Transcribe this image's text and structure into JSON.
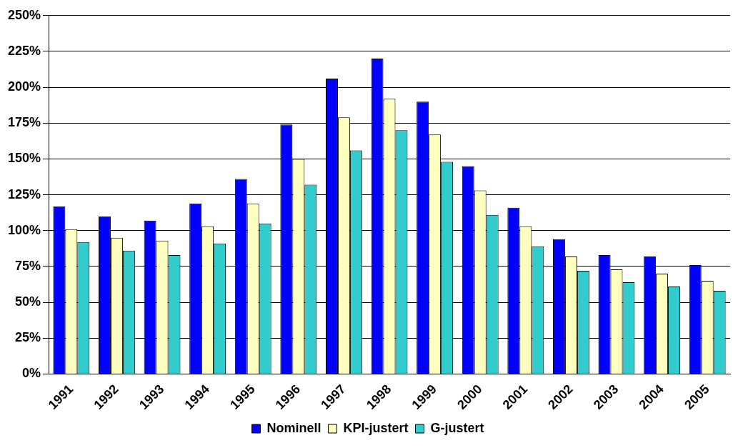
{
  "chart_data": {
    "type": "bar",
    "categories": [
      "1991",
      "1992",
      "1993",
      "1994",
      "1995",
      "1996",
      "1997",
      "1998",
      "1999",
      "2000",
      "2001",
      "2002",
      "2003",
      "2004",
      "2005"
    ],
    "series": [
      {
        "name": "Nominell",
        "color": "#0000ff",
        "values": [
          117,
          110,
          107,
          119,
          136,
          174,
          206,
          220,
          190,
          145,
          116,
          94,
          83,
          82,
          76
        ]
      },
      {
        "name": "KPI-justert",
        "color": "#ffffc0",
        "values": [
          101,
          95,
          93,
          103,
          119,
          150,
          179,
          192,
          167,
          128,
          103,
          82,
          73,
          70,
          65
        ]
      },
      {
        "name": "G-justert",
        "color": "#33cccc",
        "values": [
          92,
          86,
          83,
          91,
          105,
          132,
          156,
          170,
          148,
          111,
          89,
          72,
          64,
          61,
          58
        ]
      }
    ],
    "ylim": [
      0,
      250
    ],
    "yticks": [
      {
        "value": 0,
        "label": "0%"
      },
      {
        "value": 25,
        "label": "25%"
      },
      {
        "value": 50,
        "label": "50%"
      },
      {
        "value": 75,
        "label": "75%"
      },
      {
        "value": 100,
        "label": "100%"
      },
      {
        "value": 125,
        "label": "125%"
      },
      {
        "value": 150,
        "label": "150%"
      },
      {
        "value": 175,
        "label": "175%"
      },
      {
        "value": 200,
        "label": "200%"
      },
      {
        "value": 225,
        "label": "225%"
      },
      {
        "value": 250,
        "label": "250%"
      }
    ],
    "grid": "y",
    "legend": "bottom"
  }
}
